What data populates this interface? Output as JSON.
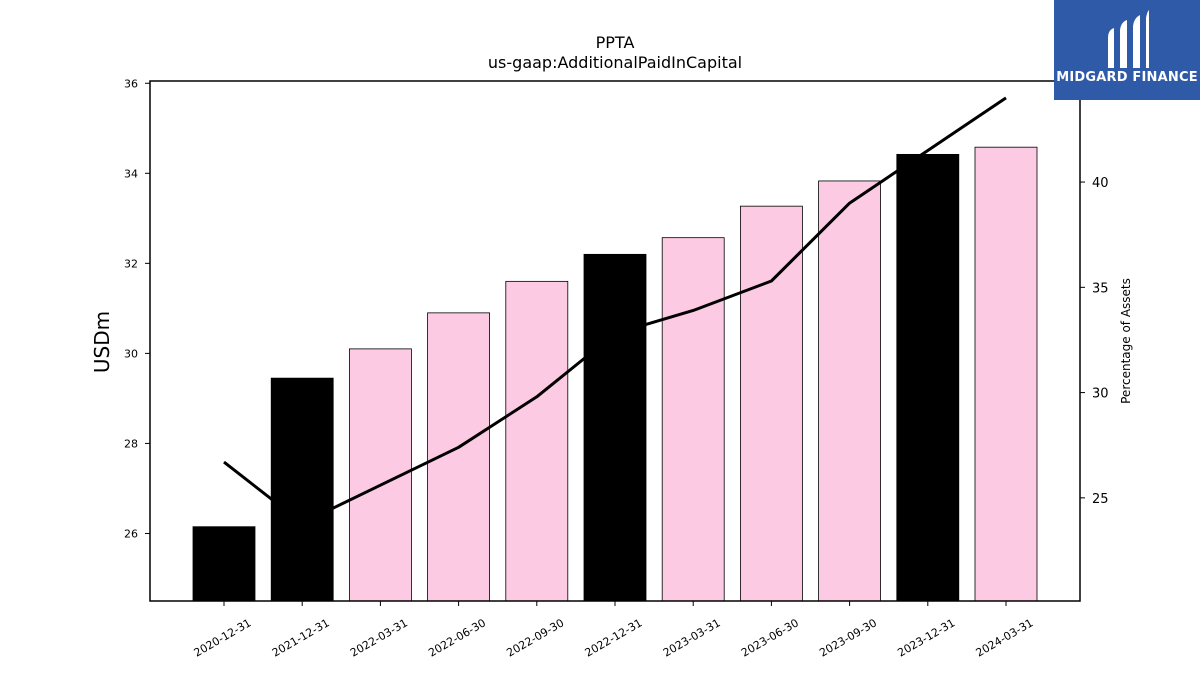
{
  "chart_data": {
    "type": "bar",
    "title": "PPTA",
    "subtitle": "us-gaap:AdditionalPaidInCapital",
    "ylabel": "USDm",
    "ylabel_right": "Percentage of Assets",
    "categories": [
      "2020-12-31",
      "2021-12-31",
      "2022-03-31",
      "2022-06-30",
      "2022-09-30",
      "2022-12-31",
      "2023-03-31",
      "2023-06-30",
      "2023-09-30",
      "2023-12-31",
      "2024-03-31"
    ],
    "ylim": [
      24.5,
      36.05
    ],
    "ylim_right": [
      20.1,
      44.8
    ],
    "yticks": [
      26,
      28,
      30,
      32,
      34,
      36
    ],
    "yticks_right": [
      25,
      30,
      35,
      40
    ],
    "series": [
      {
        "kind": "bar",
        "axis": "left",
        "values": [
          26.15,
          29.45,
          30.1,
          30.9,
          31.6,
          32.2,
          32.57,
          33.27,
          33.83,
          34.42,
          34.58
        ],
        "colors": [
          "#000000",
          "#000000",
          "#fccbe3",
          "#fccbe3",
          "#fccbe3",
          "#000000",
          "#fccbe3",
          "#fccbe3",
          "#fccbe3",
          "#000000",
          "#fccbe3"
        ]
      },
      {
        "kind": "line",
        "axis": "right",
        "values": [
          26.7,
          23.8,
          25.6,
          27.4,
          29.8,
          32.8,
          33.9,
          35.3,
          39.0,
          41.5,
          44.0
        ],
        "color": "#000000"
      }
    ],
    "grid": false,
    "legend": "none"
  },
  "logo": {
    "text": "MIDGARD FINANCE",
    "background": "#2e5aa8"
  }
}
